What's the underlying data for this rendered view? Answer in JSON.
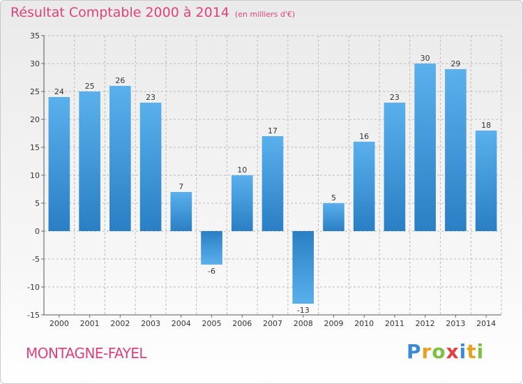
{
  "title": "Résultat Comptable 2000 à 2014",
  "subtitle": "(en milliers d'€)",
  "commune": "MONTAGNE-FAYEL",
  "logo_text": "Proxiti",
  "chart_data": {
    "type": "bar",
    "title": "Résultat Comptable 2000 à 2014",
    "subtitle": "(en milliers d'€)",
    "categories": [
      "2000",
      "2001",
      "2002",
      "2003",
      "2004",
      "2005",
      "2006",
      "2007",
      "2008",
      "2009",
      "2010",
      "2011",
      "2012",
      "2013",
      "2014"
    ],
    "values": [
      24,
      25,
      26,
      23,
      7,
      -6,
      10,
      17,
      -13,
      5,
      16,
      23,
      30,
      29,
      18
    ],
    "ylim": [
      -15,
      35
    ],
    "yticks": [
      -15,
      -10,
      -5,
      0,
      5,
      10,
      15,
      20,
      25,
      30,
      35
    ],
    "grid": true,
    "xlabel": "",
    "ylabel": "",
    "colors": {
      "bar_top": "#5ab0ec",
      "bar_bottom": "#2a7fc4",
      "grid": "#b8b8b8"
    }
  }
}
